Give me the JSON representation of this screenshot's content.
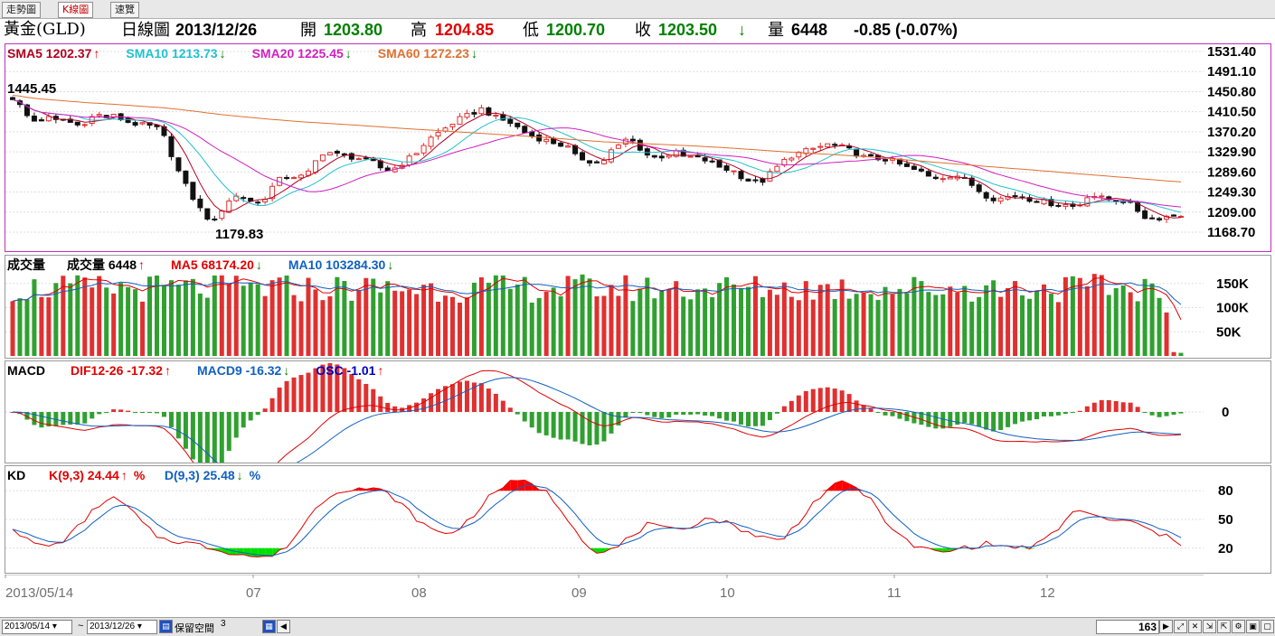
{
  "tabs": [
    {
      "label": "走勢圖"
    },
    {
      "label": "K線圖"
    },
    {
      "label": "速覽"
    }
  ],
  "header": {
    "symbol": "黃金(GLD)",
    "period": "日線圖",
    "date": "2013/12/26",
    "open_label": "開",
    "open": "1203.80",
    "high_label": "高",
    "high": "1204.85",
    "low_label": "低",
    "low": "1200.70",
    "close_label": "收",
    "close": "1203.50",
    "close_arrow": "↓",
    "volume_label": "量",
    "volume": "6448",
    "change": "-0.85 (-0.07%)"
  },
  "price_panel": {
    "legend": [
      {
        "text": "SMA5 1202.37",
        "arrow": "↑",
        "color": "#b00020",
        "arrow_color": "#e00000"
      },
      {
        "text": "SMA10 1213.73",
        "arrow": "↓",
        "color": "#20c0d0",
        "arrow_color": "#008000"
      },
      {
        "text": "SMA20 1225.45",
        "arrow": "↓",
        "color": "#d020c0",
        "arrow_color": "#008000"
      },
      {
        "text": "SMA60 1272.23",
        "arrow": "↓",
        "color": "#e07030",
        "arrow_color": "#008000"
      }
    ],
    "high_mark": "1445.45",
    "low_mark": "1179.83",
    "y_ticks": [
      "1531.40",
      "1491.10",
      "1450.80",
      "1410.50",
      "1370.20",
      "1329.90",
      "1289.60",
      "1249.30",
      "1209.00",
      "1168.70"
    ]
  },
  "volume_panel": {
    "title": "成交量",
    "legend": [
      {
        "text": "成交量 6448",
        "arrow": "↑",
        "color": "#000000",
        "arrow_color": "#e00000"
      },
      {
        "text": "MA5 68174.20",
        "arrow": "↓",
        "color": "#e00000",
        "arrow_color": "#008000"
      },
      {
        "text": "MA10 103284.30",
        "arrow": "↓",
        "color": "#1060c0",
        "arrow_color": "#008000"
      }
    ],
    "y_ticks": [
      "150K",
      "100K",
      "50K"
    ]
  },
  "macd_panel": {
    "title": "MACD",
    "legend": [
      {
        "text": "DIF12-26 -17.32",
        "arrow": "↑",
        "color": "#e00000",
        "arrow_color": "#e00000"
      },
      {
        "text": "MACD9 -16.32",
        "arrow": "↓",
        "color": "#1060c0",
        "arrow_color": "#008000"
      },
      {
        "text": "OSC -1.01",
        "arrow": "↑",
        "color": "#0000c0",
        "arrow_color": "#e00000"
      }
    ],
    "y_ticks": [
      "0"
    ]
  },
  "kd_panel": {
    "title": "KD",
    "legend": [
      {
        "text": "K(9,3) 24.44",
        "arrow": "↑",
        "suffix": "%",
        "color": "#e00000",
        "arrow_color": "#e00000"
      },
      {
        "text": "D(9,3) 25.48",
        "arrow": "↓",
        "suffix": "%",
        "color": "#1060c0",
        "arrow_color": "#008000"
      }
    ],
    "y_ticks": [
      "80",
      "50",
      "20"
    ]
  },
  "x_axis": {
    "labels": [
      "2013/05/14",
      "07",
      "08",
      "09",
      "10",
      "11",
      "12"
    ]
  },
  "status_bar": {
    "from_date": "2013/05/14",
    "tilde": "~",
    "to_date": "2013/12/26",
    "reserve_label": "保留空間",
    "reserve_value": "3",
    "bar_count": "163"
  },
  "colors": {
    "up": "#e03030",
    "down": "#111111",
    "vol_up": "#e03030",
    "vol_down": "#30a030",
    "panel_border": "#c030c0"
  },
  "chart_data": {
    "type": "candlestick",
    "title": "黃金(GLD) 日線圖",
    "dates": [
      "2013/05/14",
      "2013/12/26"
    ],
    "bar_count": 163,
    "price_range": [
      1168.7,
      1531.4
    ],
    "period_high": 1445.45,
    "period_low": 1179.83,
    "close_path": [
      1438,
      1420,
      1395,
      1390,
      1400,
      1392,
      1395,
      1388,
      1382,
      1395,
      1406,
      1399,
      1402,
      1395,
      1388,
      1385,
      1382,
      1380,
      1360,
      1320,
      1280,
      1250,
      1222,
      1200,
      1190,
      1218,
      1238,
      1242,
      1235,
      1225,
      1238,
      1262,
      1278,
      1282,
      1279,
      1283,
      1310,
      1330,
      1328,
      1322,
      1320,
      1318,
      1312,
      1308,
      1295,
      1293,
      1303,
      1315,
      1328,
      1346,
      1362,
      1372,
      1384,
      1395,
      1402,
      1410,
      1418,
      1402,
      1395,
      1390,
      1380,
      1368,
      1360,
      1355,
      1350,
      1345,
      1340,
      1320,
      1315,
      1310,
      1305,
      1330,
      1340,
      1355,
      1350,
      1330,
      1318,
      1320,
      1325,
      1328,
      1318,
      1320,
      1315,
      1310,
      1300,
      1295,
      1290,
      1276,
      1270,
      1268,
      1285,
      1300,
      1315,
      1325,
      1330,
      1335,
      1340,
      1345,
      1342,
      1338,
      1330,
      1320,
      1318,
      1316,
      1315,
      1310,
      1300,
      1295,
      1290,
      1280,
      1278,
      1280,
      1285,
      1278,
      1265,
      1252,
      1240,
      1235,
      1238,
      1243,
      1240,
      1235,
      1232,
      1228,
      1225,
      1225,
      1220,
      1225,
      1245,
      1240,
      1235,
      1233,
      1232,
      1225,
      1210,
      1195,
      1196,
      1200,
      1202,
      1204
    ],
    "indicators": {
      "SMA5": 1202.37,
      "SMA10": 1213.73,
      "SMA20": 1225.45,
      "SMA60": 1272.23,
      "volume": 6448,
      "vol_MA5": 68174.2,
      "vol_MA10": 103284.3,
      "DIF12_26": -17.32,
      "MACD9": -16.32,
      "OSC": -1.01,
      "K": 24.44,
      "D": 25.48
    },
    "kd_path": [
      42,
      28,
      22,
      24,
      35,
      52,
      68,
      72,
      60,
      42,
      30,
      28,
      25,
      22,
      18,
      15,
      12,
      10,
      15,
      30,
      52,
      70,
      80,
      83,
      82,
      80,
      70,
      55,
      42,
      35,
      38,
      52,
      70,
      84,
      90,
      88,
      80,
      62,
      42,
      20,
      15,
      22,
      35,
      45,
      40,
      38,
      45,
      52,
      48,
      42,
      35,
      30,
      28,
      45,
      65,
      80,
      88,
      85,
      70,
      50,
      32,
      22,
      18,
      15,
      20,
      22,
      25,
      22,
      20,
      22,
      30,
      45,
      62,
      55,
      48,
      50,
      45,
      38,
      32,
      25
    ]
  }
}
